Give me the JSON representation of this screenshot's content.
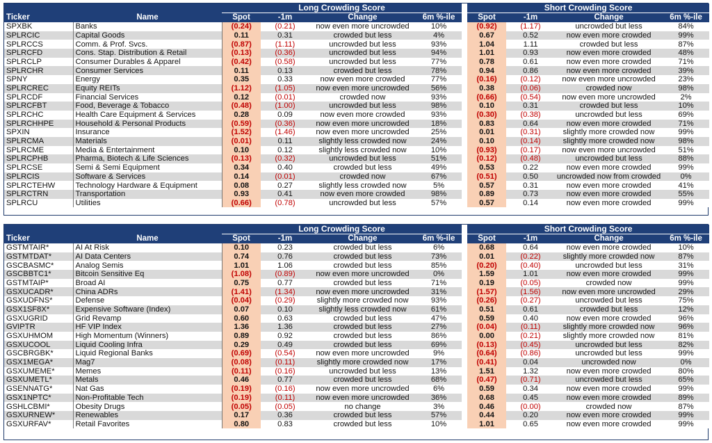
{
  "headers": {
    "ticker": "Ticker",
    "name": "Name",
    "long_group": "Long Crowding Score",
    "short_group": "Short Crowding Score",
    "spot": "Spot",
    "m1": "-1m",
    "change": "Change",
    "pctile": "6m %-ile"
  },
  "colors": {
    "header_bg": "#1f3f78",
    "spot_bg": "#f9d0b5",
    "negative": "#c00000",
    "band": "#d9d9d9"
  },
  "table1": {
    "rows": [
      {
        "ticker": "SPXBK",
        "name": "Banks",
        "l_spot": "(0.24)",
        "l_m1": "(0.21)",
        "l_change": "now even more uncrowded",
        "l_pct": "10%",
        "s_spot": "(0.92)",
        "s_m1": "(1.17)",
        "s_change": "uncrowded but less",
        "s_pct": "84%"
      },
      {
        "ticker": "SPLRCIC",
        "name": "Capital Goods",
        "l_spot": "0.11",
        "l_m1": "0.31",
        "l_change": "crowded but less",
        "l_pct": "4%",
        "s_spot": "0.67",
        "s_m1": "0.52",
        "s_change": "now even more crowded",
        "s_pct": "99%"
      },
      {
        "ticker": "SPLRCCS",
        "name": "Comm. & Prof. Svcs.",
        "l_spot": "(0.87)",
        "l_m1": "(1.11)",
        "l_change": "uncrowded but less",
        "l_pct": "93%",
        "s_spot": "1.04",
        "s_m1": "1.11",
        "s_change": "crowded but less",
        "s_pct": "87%"
      },
      {
        "ticker": "SPLRCFD",
        "name": "Cons. Stap. Distribution & Retail",
        "l_spot": "(0.13)",
        "l_m1": "(0.36)",
        "l_change": "uncrowded but less",
        "l_pct": "94%",
        "s_spot": "1.01",
        "s_m1": "0.93",
        "s_change": "now even more crowded",
        "s_pct": "48%"
      },
      {
        "ticker": "SPLRCLP",
        "name": "Consumer Durables & Apparel",
        "l_spot": "(0.42)",
        "l_m1": "(0.58)",
        "l_change": "uncrowded but less",
        "l_pct": "77%",
        "s_spot": "0.78",
        "s_m1": "0.61",
        "s_change": "now even more crowded",
        "s_pct": "71%"
      },
      {
        "ticker": "SPLRCHR",
        "name": "Consumer Services",
        "l_spot": "0.11",
        "l_m1": "0.13",
        "l_change": "crowded but less",
        "l_pct": "78%",
        "s_spot": "0.94",
        "s_m1": "0.86",
        "s_change": "now even more crowded",
        "s_pct": "39%"
      },
      {
        "ticker": "SPNY",
        "name": "Energy",
        "l_spot": "0.35",
        "l_m1": "0.33",
        "l_change": "now even more crowded",
        "l_pct": "77%",
        "s_spot": "(0.16)",
        "s_m1": "(0.12)",
        "s_change": "now even more uncrowded",
        "s_pct": "23%"
      },
      {
        "ticker": "SPLRCREC",
        "name": "Equity REITs",
        "l_spot": "(1.12)",
        "l_m1": "(1.05)",
        "l_change": "now even more uncrowded",
        "l_pct": "56%",
        "s_spot": "0.38",
        "s_m1": "(0.06)",
        "s_change": "crowded now",
        "s_pct": "98%"
      },
      {
        "ticker": "SPLRCDF",
        "name": "Financial Services",
        "l_spot": "0.12",
        "l_m1": "(0.01)",
        "l_change": "crowded now",
        "l_pct": "93%",
        "s_spot": "(0.66)",
        "s_m1": "(0.54)",
        "s_change": "now even more uncrowded",
        "s_pct": "2%"
      },
      {
        "ticker": "SPLRCFBT",
        "name": "Food, Beverage & Tobacco",
        "l_spot": "(0.48)",
        "l_m1": "(1.00)",
        "l_change": "uncrowded but less",
        "l_pct": "98%",
        "s_spot": "0.10",
        "s_m1": "0.31",
        "s_change": "crowded but less",
        "s_pct": "10%"
      },
      {
        "ticker": "SPLRCHC",
        "name": "Health Care Equipment & Services",
        "l_spot": "0.28",
        "l_m1": "0.09",
        "l_change": "now even more crowded",
        "l_pct": "93%",
        "s_spot": "(0.30)",
        "s_m1": "(0.38)",
        "s_change": "uncrowded but less",
        "s_pct": "69%"
      },
      {
        "ticker": "SPLRCHHPE",
        "name": "Household & Personal Products",
        "l_spot": "(0.59)",
        "l_m1": "(0.36)",
        "l_change": "now even more uncrowded",
        "l_pct": "18%",
        "s_spot": "0.83",
        "s_m1": "0.64",
        "s_change": "now even more crowded",
        "s_pct": "71%"
      },
      {
        "ticker": "SPXIN",
        "name": "Insurance",
        "l_spot": "(1.52)",
        "l_m1": "(1.46)",
        "l_change": "now even more uncrowded",
        "l_pct": "25%",
        "s_spot": "0.01",
        "s_m1": "(0.31)",
        "s_change": "slightly more crowded now",
        "s_pct": "99%"
      },
      {
        "ticker": "SPLRCMA",
        "name": "Materials",
        "l_spot": "(0.01)",
        "l_m1": "0.11",
        "l_change": "slightly less crowded now",
        "l_pct": "24%",
        "s_spot": "0.10",
        "s_m1": "(0.14)",
        "s_change": "slightly more crowded now",
        "s_pct": "98%"
      },
      {
        "ticker": "SPLRCME",
        "name": "Media & Entertainment",
        "l_spot": "0.10",
        "l_m1": "0.12",
        "l_change": "slightly less crowded now",
        "l_pct": "10%",
        "s_spot": "(0.93)",
        "s_m1": "(0.17)",
        "s_change": "now even more uncrowded",
        "s_pct": "51%"
      },
      {
        "ticker": "SPLRCPHB",
        "name": "Pharma, Biotech & Life Sciences",
        "l_spot": "(0.13)",
        "l_m1": "(0.32)",
        "l_change": "uncrowded but less",
        "l_pct": "51%",
        "s_spot": "(0.12)",
        "s_m1": "(0.48)",
        "s_change": "uncrowded but less",
        "s_pct": "88%"
      },
      {
        "ticker": "SPLRCSE",
        "name": "Semi & Semi Equipment",
        "l_spot": "0.34",
        "l_m1": "0.40",
        "l_change": "crowded but less",
        "l_pct": "49%",
        "s_spot": "0.53",
        "s_m1": "0.22",
        "s_change": "now even more crowded",
        "s_pct": "99%"
      },
      {
        "ticker": "SPLRCIS",
        "name": "Software & Services",
        "l_spot": "0.14",
        "l_m1": "(0.01)",
        "l_change": "crowded now",
        "l_pct": "67%",
        "s_spot": "(0.51)",
        "s_m1": "0.50",
        "s_change": "uncrowded now from crowded",
        "s_pct": "0%"
      },
      {
        "ticker": "SPLRCTEHW",
        "name": "Technology Hardware & Equipment",
        "l_spot": "0.08",
        "l_m1": "0.27",
        "l_change": "slightly less crowded now",
        "l_pct": "5%",
        "s_spot": "0.57",
        "s_m1": "0.31",
        "s_change": "now even more crowded",
        "s_pct": "41%"
      },
      {
        "ticker": "SPLRCTRN",
        "name": "Transportation",
        "l_spot": "0.93",
        "l_m1": "0.41",
        "l_change": "now even more crowded",
        "l_pct": "98%",
        "s_spot": "0.89",
        "s_m1": "0.73",
        "s_change": "now even more crowded",
        "s_pct": "55%"
      },
      {
        "ticker": "SPLRCU",
        "name": "Utilities",
        "l_spot": "(0.66)",
        "l_m1": "(0.78)",
        "l_change": "uncrowded but less",
        "l_pct": "57%",
        "s_spot": "0.57",
        "s_m1": "0.14",
        "s_change": "now even more crowded",
        "s_pct": "99%"
      }
    ]
  },
  "table2": {
    "rows": [
      {
        "ticker": "GSTMTAIR*",
        "name": "AI At Risk",
        "l_spot": "0.10",
        "l_m1": "0.23",
        "l_change": "crowded but less",
        "l_pct": "6%",
        "s_spot": "0.68",
        "s_m1": "0.64",
        "s_change": "now even more crowded",
        "s_pct": "10%"
      },
      {
        "ticker": "GSTMTDAT*",
        "name": "AI Data Centers",
        "l_spot": "0.74",
        "l_m1": "0.76",
        "l_change": "crowded but less",
        "l_pct": "73%",
        "s_spot": "0.01",
        "s_m1": "(0.22)",
        "s_change": "slightly more crowded now",
        "s_pct": "87%"
      },
      {
        "ticker": "GSCBASMC*",
        "name": "Analog Semis",
        "l_spot": "1.01",
        "l_m1": "1.06",
        "l_change": "crowded but less",
        "l_pct": "85%",
        "s_spot": "(0.20)",
        "s_m1": "(0.40)",
        "s_change": "uncrowded but less",
        "s_pct": "31%"
      },
      {
        "ticker": "GSCBBTC1*",
        "name": "Bitcoin Sensitive Eq",
        "l_spot": "(1.08)",
        "l_m1": "(0.89)",
        "l_change": "now even more uncrowded",
        "l_pct": "0%",
        "s_spot": "1.59",
        "s_m1": "1.01",
        "s_change": "now even more crowded",
        "s_pct": "99%"
      },
      {
        "ticker": "GSTMTAIP*",
        "name": "Broad AI",
        "l_spot": "0.75",
        "l_m1": "0.77",
        "l_change": "crowded but less",
        "l_pct": "71%",
        "s_spot": "0.19",
        "s_m1": "(0.05)",
        "s_change": "crowded now",
        "s_pct": "99%"
      },
      {
        "ticker": "GSXUCADR*",
        "name": "China ADRs",
        "l_spot": "(1.41)",
        "l_m1": "(1.34)",
        "l_change": "now even more uncrowded",
        "l_pct": "31%",
        "s_spot": "(1.57)",
        "s_m1": "(1.56)",
        "s_change": "now even more uncrowded",
        "s_pct": "29%"
      },
      {
        "ticker": "GSXUDFNS*",
        "name": "Defense",
        "l_spot": "(0.04)",
        "l_m1": "(0.29)",
        "l_change": "slightly more crowded now",
        "l_pct": "93%",
        "s_spot": "(0.26)",
        "s_m1": "(0.27)",
        "s_change": "uncrowded but less",
        "s_pct": "75%"
      },
      {
        "ticker": "GSX1SF8X*",
        "name": "Expensive Software (Index)",
        "l_spot": "0.07",
        "l_m1": "0.10",
        "l_change": "slightly less crowded now",
        "l_pct": "61%",
        "s_spot": "0.51",
        "s_m1": "0.61",
        "s_change": "crowded but less",
        "s_pct": "12%"
      },
      {
        "ticker": "GSXUGRID",
        "name": "Grid Revamp",
        "l_spot": "0.60",
        "l_m1": "0.63",
        "l_change": "crowded but less",
        "l_pct": "47%",
        "s_spot": "0.59",
        "s_m1": "0.40",
        "s_change": "now even more crowded",
        "s_pct": "96%"
      },
      {
        "ticker": "GVIPTR",
        "name": "HF VIP Index",
        "l_spot": "1.36",
        "l_m1": "1.36",
        "l_change": "crowded but less",
        "l_pct": "27%",
        "s_spot": "(0.04)",
        "s_m1": "(0.11)",
        "s_change": "slightly more crowded now",
        "s_pct": "96%"
      },
      {
        "ticker": "GSXUHMOM",
        "name": "High Momentum (Winners)",
        "l_spot": "0.89",
        "l_m1": "0.92",
        "l_change": "crowded but less",
        "l_pct": "86%",
        "s_spot": "0.00",
        "s_m1": "(0.21)",
        "s_change": "slightly more crowded now",
        "s_pct": "81%"
      },
      {
        "ticker": "GSXUCOOL",
        "name": "Liquid Cooling Infra",
        "l_spot": "0.29",
        "l_m1": "0.49",
        "l_change": "crowded but less",
        "l_pct": "69%",
        "s_spot": "(0.13)",
        "s_m1": "(0.45)",
        "s_change": "uncrowded but less",
        "s_pct": "82%"
      },
      {
        "ticker": "GSCBRGBK*",
        "name": "Liquid Regional Banks",
        "l_spot": "(0.69)",
        "l_m1": "(0.54)",
        "l_change": "now even more uncrowded",
        "l_pct": "9%",
        "s_spot": "(0.64)",
        "s_m1": "(0.86)",
        "s_change": "uncrowded but less",
        "s_pct": "99%"
      },
      {
        "ticker": "GSX1MEGA*",
        "name": "Mag7",
        "l_spot": "(0.08)",
        "l_m1": "(0.11)",
        "l_change": "slightly more crowded now",
        "l_pct": "17%",
        "s_spot": "(0.41)",
        "s_m1": "0.04",
        "s_change": "uncrowded now",
        "s_pct": "0%"
      },
      {
        "ticker": "GSXUMEME*",
        "name": "Memes",
        "l_spot": "(0.11)",
        "l_m1": "(0.16)",
        "l_change": "uncrowded but less",
        "l_pct": "13%",
        "s_spot": "1.51",
        "s_m1": "1.32",
        "s_change": "now even more crowded",
        "s_pct": "80%"
      },
      {
        "ticker": "GSXUMETL*",
        "name": "Metals",
        "l_spot": "0.46",
        "l_m1": "0.77",
        "l_change": "crowded but less",
        "l_pct": "68%",
        "s_spot": "(0.47)",
        "s_m1": "(0.71)",
        "s_change": "uncrowded but less",
        "s_pct": "65%"
      },
      {
        "ticker": "GSENNATG*",
        "name": "Nat Gas",
        "l_spot": "(0.19)",
        "l_m1": "(0.16)",
        "l_change": "now even more uncrowded",
        "l_pct": "6%",
        "s_spot": "0.59",
        "s_m1": "0.34",
        "s_change": "now even more crowded",
        "s_pct": "99%"
      },
      {
        "ticker": "GSX1NPTC*",
        "name": "Non-Profitable Tech",
        "l_spot": "(0.19)",
        "l_m1": "(0.11)",
        "l_change": "now even more uncrowded",
        "l_pct": "36%",
        "s_spot": "0.68",
        "s_m1": "0.45",
        "s_change": "now even more crowded",
        "s_pct": "89%"
      },
      {
        "ticker": "GSHLCBMI*",
        "name": "Obesity Drugs",
        "l_spot": "(0.05)",
        "l_m1": "(0.05)",
        "l_change": "no change",
        "l_pct": "3%",
        "s_spot": "0.46",
        "s_m1": "(0.00)",
        "s_change": "crowded now",
        "s_pct": "87%"
      },
      {
        "ticker": "GSXURNEW*",
        "name": "Renewables",
        "l_spot": "0.17",
        "l_m1": "0.36",
        "l_change": "crowded but less",
        "l_pct": "57%",
        "s_spot": "0.44",
        "s_m1": "0.20",
        "s_change": "now even more crowded",
        "s_pct": "99%"
      },
      {
        "ticker": "GSXURFAV*",
        "name": "Retail Favorites",
        "l_spot": "0.80",
        "l_m1": "0.83",
        "l_change": "crowded but less",
        "l_pct": "10%",
        "s_spot": "1.01",
        "s_m1": "0.65",
        "s_change": "now even more crowded",
        "s_pct": "99%"
      }
    ]
  }
}
